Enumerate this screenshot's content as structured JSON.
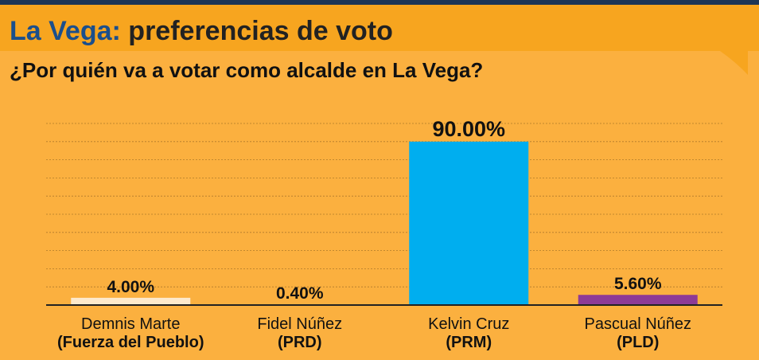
{
  "chart_data": {
    "type": "bar",
    "title": [
      "La Vega:",
      "preferencias de voto"
    ],
    "subtitle": "¿Por quién va a votar como alcalde en La Vega?",
    "categories": [
      "Demnis Marte",
      "Fidel Núñez",
      "Kelvin Cruz",
      "Pascual Núñez"
    ],
    "parties": [
      "(Fuerza del Pueblo)",
      "(PRD)",
      "(PRM)",
      "(PLD)"
    ],
    "values": [
      4,
      0.4,
      90,
      5.6
    ],
    "value_labels": [
      "4.00%",
      "0.40%",
      "90.00%",
      "5.60%"
    ],
    "colors": [
      "#fde9cc",
      "#f6a21c",
      "#00aeef",
      "#8e3a96"
    ],
    "ylim": [
      0,
      100
    ],
    "yticks": [
      0,
      10,
      20,
      30,
      40,
      50,
      60,
      70,
      80,
      90,
      100
    ],
    "grid": true
  }
}
